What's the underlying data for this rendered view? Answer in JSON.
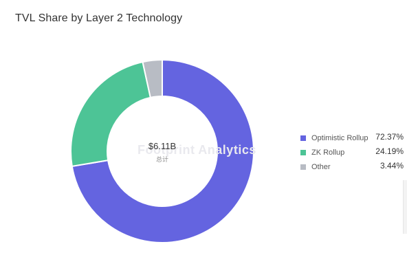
{
  "chart_data": {
    "type": "pie",
    "title": "TVL Share by Layer 2 Technology",
    "center_value": "$6.11B",
    "center_label": "总计",
    "watermark": "Footprint Analytics",
    "series": [
      {
        "name": "Optimistic Rollup",
        "value": 72.37,
        "label": "72.37%",
        "color": "#6464e0"
      },
      {
        "name": "ZK Rollup",
        "value": 24.19,
        "label": "24.19%",
        "color": "#4dc496"
      },
      {
        "name": "Other",
        "value": 3.44,
        "label": "3.44%",
        "color": "#b8bcc4"
      }
    ],
    "legend_position": "right"
  }
}
